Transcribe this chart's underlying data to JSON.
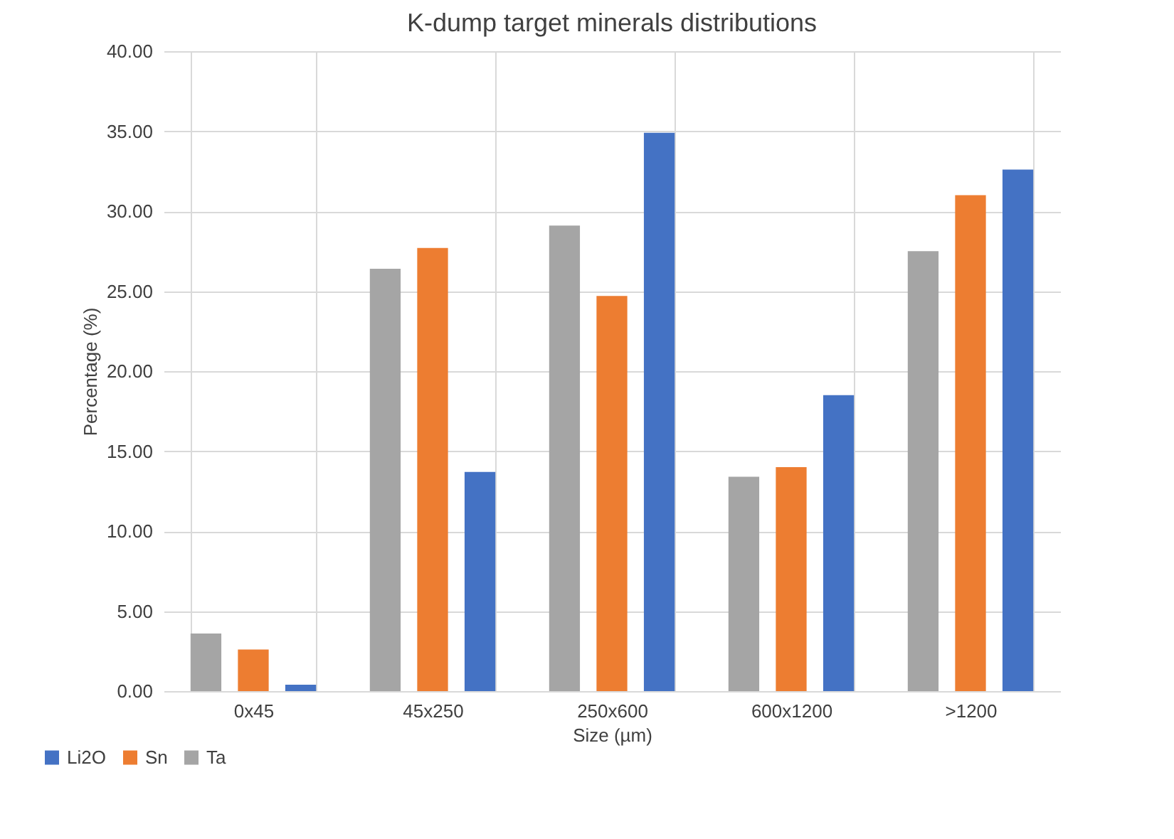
{
  "chart_data": {
    "type": "bar",
    "title": "K-dump target minerals distributions",
    "xlabel": "Size (µm)",
    "ylabel": "Percentage  (%)",
    "categories": [
      "0x45",
      "45x250",
      "250x600",
      "600x1200",
      ">1200"
    ],
    "series": [
      {
        "name": "Ta",
        "color": "#a5a5a5",
        "values": [
          3.6,
          26.4,
          29.1,
          13.4,
          27.5
        ]
      },
      {
        "name": "Sn",
        "color": "#ed7d31",
        "values": [
          2.6,
          27.7,
          24.7,
          14.0,
          31.0
        ]
      },
      {
        "name": "Li2O",
        "color": "#4472c4",
        "values": [
          0.4,
          13.7,
          34.9,
          18.5,
          32.6
        ]
      }
    ],
    "ylim": [
      0,
      40
    ],
    "yticks": [
      {
        "value": 0,
        "label": "0.00"
      },
      {
        "value": 5,
        "label": "5.00"
      },
      {
        "value": 10,
        "label": "10.00"
      },
      {
        "value": 15,
        "label": "15.00"
      },
      {
        "value": 20,
        "label": "20.00"
      },
      {
        "value": 25,
        "label": "25.00"
      },
      {
        "value": 30,
        "label": "30.00"
      },
      {
        "value": 35,
        "label": "35.00"
      },
      {
        "value": 40,
        "label": "40.00"
      }
    ],
    "grid": true,
    "legend": "bottom left"
  }
}
